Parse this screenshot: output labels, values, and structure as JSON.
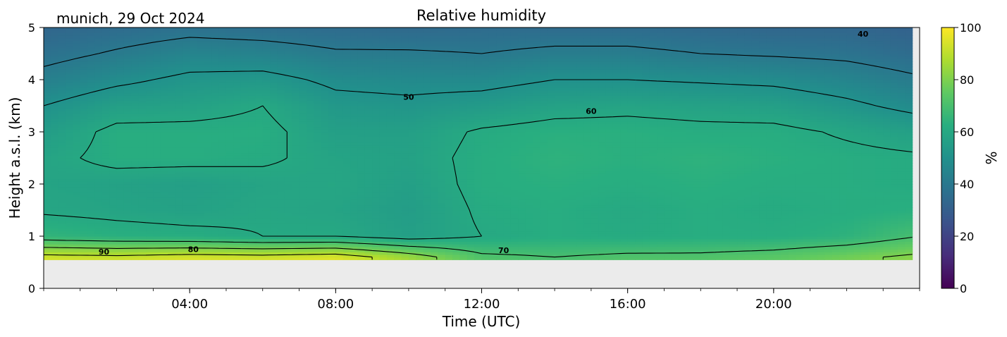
{
  "chart_data": {
    "type": "heatmap",
    "title": "Relative humidity",
    "subtitle": "munich, 29 Oct 2024",
    "xlabel": "Time (UTC)",
    "ylabel": "Height a.s.l. (km)",
    "xlim": [
      0,
      24
    ],
    "ylim": [
      0,
      5
    ],
    "x_ticks": [
      4,
      8,
      12,
      16,
      20
    ],
    "x_tick_labels": [
      "04:00",
      "08:00",
      "12:00",
      "16:00",
      "20:00"
    ],
    "y_ticks": [
      0,
      1,
      2,
      3,
      4,
      5
    ],
    "y_tick_labels": [
      "0",
      "1",
      "2",
      "3",
      "4",
      "5"
    ],
    "colorbar": {
      "label": "%",
      "range": [
        0,
        100
      ],
      "ticks": [
        0,
        20,
        40,
        60,
        80,
        100
      ],
      "tick_labels": [
        "0",
        "20",
        "40",
        "60",
        "80",
        "100"
      ],
      "colormap": [
        "#440154",
        "#472d7b",
        "#3b528b",
        "#2c728e",
        "#21918c",
        "#28ae80",
        "#5ec962",
        "#addc30",
        "#fde725"
      ]
    },
    "no_data_color": "#ebebeb",
    "data_bottom_km": 0.55,
    "heights_km": [
      0.6,
      1.0,
      1.5,
      2.0,
      2.5,
      3.0,
      3.5,
      4.0,
      4.5,
      5.0
    ],
    "times_h": [
      0,
      2,
      4,
      6,
      8,
      10,
      12,
      14,
      16,
      18,
      20,
      22,
      24
    ],
    "rh_grid": [
      [
        93,
        92,
        94,
        93,
        95,
        85,
        72,
        70,
        72,
        72,
        74,
        78,
        82
      ],
      [
        65,
        63,
        62,
        60,
        60,
        56,
        60,
        62,
        61,
        62,
        62,
        64,
        70
      ],
      [
        59,
        58,
        57,
        59,
        58,
        55,
        61,
        62,
        60,
        62,
        61,
        62,
        63
      ],
      [
        58,
        57,
        56,
        58,
        59,
        56,
        62,
        63,
        62,
        63,
        62,
        62,
        61
      ],
      [
        58,
        62,
        62,
        61,
        58,
        57,
        62,
        64,
        63,
        64,
        63,
        62,
        61
      ],
      [
        55,
        62,
        62,
        62,
        56,
        56,
        61,
        63,
        63,
        62,
        62,
        59,
        56
      ],
      [
        50,
        56,
        57,
        60,
        53,
        52,
        54,
        57,
        58,
        57,
        56,
        52,
        47
      ],
      [
        43,
        48,
        52,
        53,
        48,
        47,
        47,
        50,
        50,
        49,
        48,
        45,
        41
      ],
      [
        37,
        41,
        45,
        44,
        41,
        41,
        40,
        42,
        42,
        40,
        39,
        38,
        35
      ],
      [
        33,
        35,
        37,
        36,
        35,
        34,
        35,
        35,
        35,
        34,
        33,
        33,
        31
      ]
    ],
    "contour_levels": [
      40,
      50,
      60,
      70,
      80,
      90
    ],
    "contour_labels": [
      {
        "text": "90",
        "x": 1.65,
        "y": 0.7
      },
      {
        "text": "80",
        "x": 4.1,
        "y": 0.75
      },
      {
        "text": "70",
        "x": 12.6,
        "y": 0.73
      },
      {
        "text": "50",
        "x": 10.0,
        "y": 3.67
      },
      {
        "text": "60",
        "x": 15.0,
        "y": 3.4
      },
      {
        "text": "40",
        "x": 22.45,
        "y": 4.88
      }
    ]
  }
}
